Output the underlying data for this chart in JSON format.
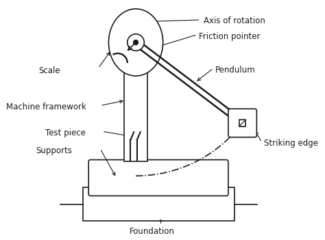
{
  "bg_color": "#ffffff",
  "line_color": "#1a1a1a",
  "labels": {
    "axis_of_rotation": "Axis of rotation",
    "friction_pointer": "Friction pointer",
    "pendulum": "Pendulum",
    "scale": "Scale",
    "machine_framework": "Machine framework",
    "test_piece": "Test piece",
    "supports": "Supports",
    "striking_edge": "Striking edge",
    "foundation": "Foundation"
  },
  "font_size": 8.5,
  "figsize": [
    4.74,
    3.51
  ],
  "dpi": 100
}
